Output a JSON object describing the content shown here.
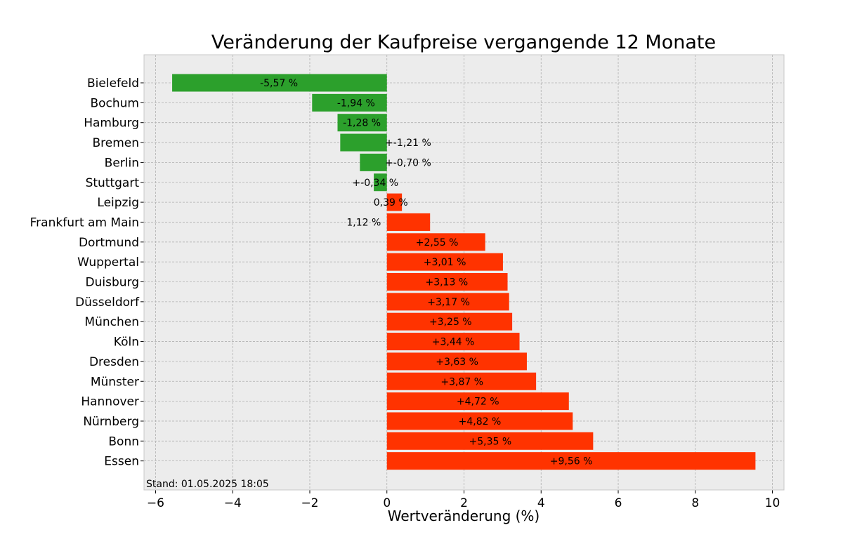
{
  "chart_data": {
    "type": "bar",
    "orientation": "horizontal",
    "title": "Veränderung der Kaufpreise vergangende 12 Monate",
    "xlabel": "Wertveränderung (%)",
    "ylabel": "",
    "xlim": [
      -6.3,
      10.3
    ],
    "x_ticks": [
      -6,
      -4,
      -2,
      0,
      2,
      4,
      6,
      8,
      10
    ],
    "x_tick_labels": [
      "−6",
      "−4",
      "−2",
      "0",
      "2",
      "4",
      "6",
      "8",
      "10"
    ],
    "grid": true,
    "categories": [
      "Bielefeld",
      "Bochum",
      "Hamburg",
      "Bremen",
      "Berlin",
      "Stuttgart",
      "Leipzig",
      "Frankfurt am Main",
      "Dortmund",
      "Wuppertal",
      "Duisburg",
      "Düsseldorf",
      "München",
      "Köln",
      "Dresden",
      "Münster",
      "Hannover",
      "Nürnberg",
      "Bonn",
      "Essen"
    ],
    "values": [
      -5.57,
      -1.94,
      -1.28,
      -1.21,
      -0.7,
      -0.34,
      0.39,
      1.12,
      2.55,
      3.01,
      3.13,
      3.17,
      3.25,
      3.44,
      3.63,
      3.87,
      4.72,
      4.82,
      5.35,
      9.56
    ],
    "data_labels": [
      "-5,57 %",
      "-1,94 %",
      "-1,28 %",
      "+-1,21 %",
      "+-0,70 %",
      "+-0,34 %",
      "0,39 %",
      "1,12 %",
      "+2,55 %",
      "+3,01 %",
      "+3,13 %",
      "+3,17 %",
      "+3,25 %",
      "+3,44 %",
      "+3,63 %",
      "+3,87 %",
      "+4,72 %",
      "+4,82 %",
      "+5,35 %",
      "+9,56 %"
    ],
    "label_positions": [
      -2.8,
      -0.8,
      -0.65,
      0.55,
      0.55,
      -0.3,
      0.1,
      -0.6,
      1.3,
      1.5,
      1.55,
      1.6,
      1.65,
      1.72,
      1.82,
      1.95,
      2.36,
      2.41,
      2.68,
      4.78
    ],
    "colors": {
      "negative": "#2ca02c",
      "positive": "#ff3300",
      "plot_background": "#ececec",
      "grid": "#b0b0b0"
    },
    "footnote": "Stand: 01.05.2025 18:05"
  }
}
